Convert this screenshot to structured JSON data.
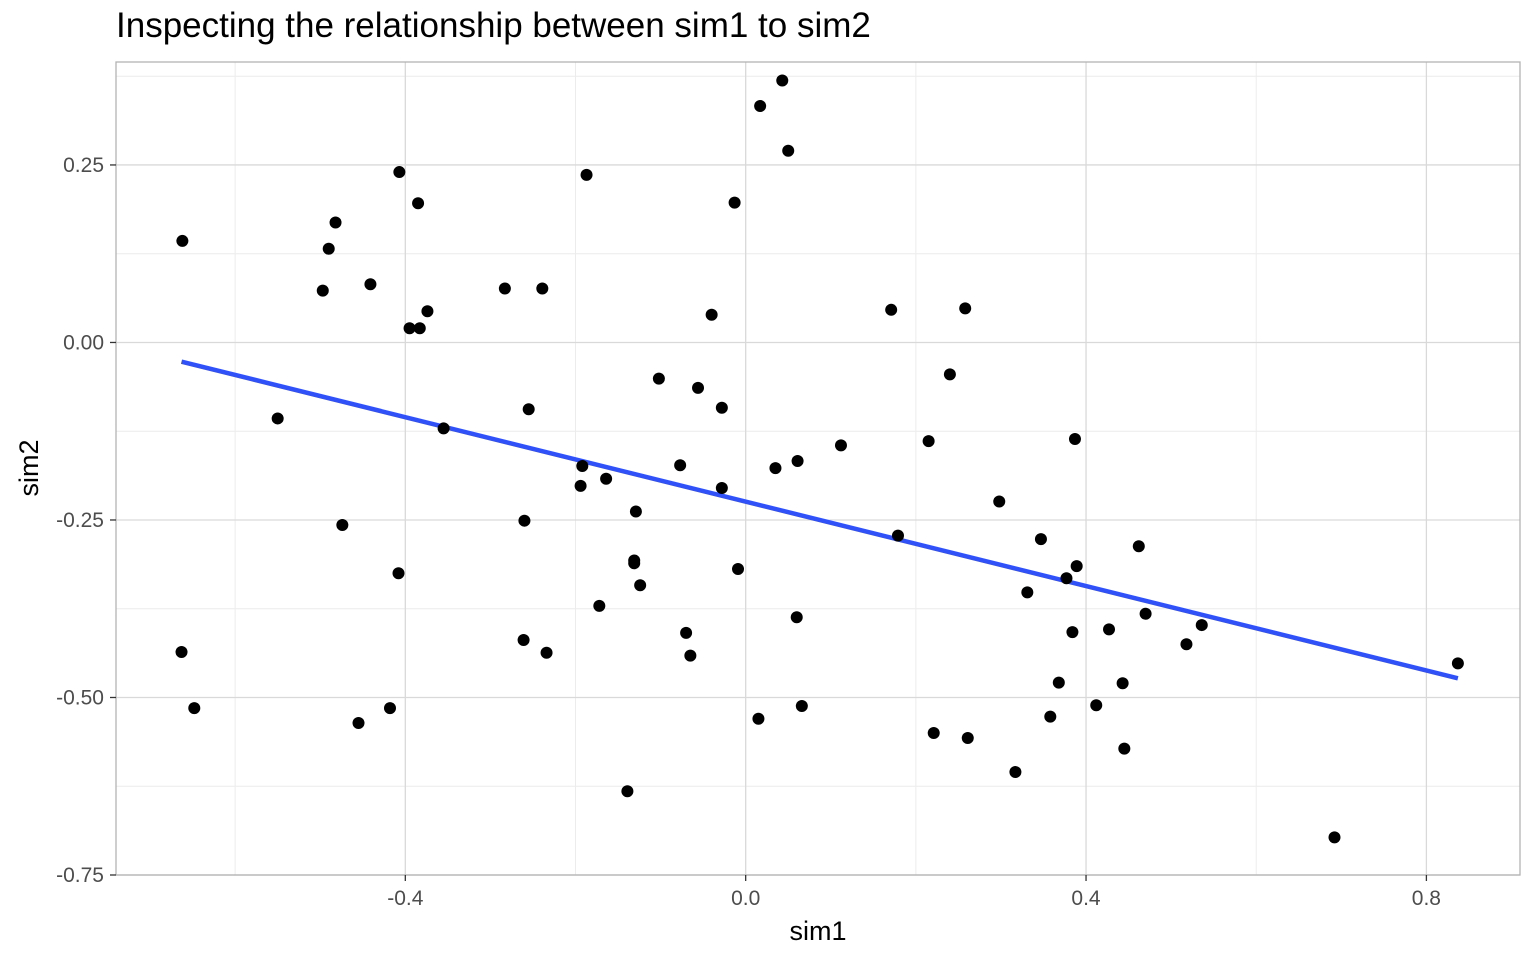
{
  "chart_data": {
    "type": "scatter",
    "title": "Inspecting the relationship between sim1 to sim2",
    "xlabel": "sim1",
    "ylabel": "sim2",
    "xlim": [
      -0.74,
      0.91
    ],
    "ylim": [
      -0.75,
      0.395
    ],
    "x_ticks": [
      -0.4,
      0.0,
      0.4,
      0.8
    ],
    "x_tick_labels": [
      "-0.4",
      "0.0",
      "0.4",
      "0.8"
    ],
    "y_ticks": [
      -0.75,
      -0.5,
      -0.25,
      0.0,
      0.25
    ],
    "y_tick_labels": [
      "-0.75",
      "-0.50",
      "-0.25",
      "0.00",
      "0.25"
    ],
    "grid": true,
    "point_color": "#000000",
    "line_color": "#3050f8",
    "points": [
      {
        "x": -0.662,
        "y": 0.143
      },
      {
        "x": -0.55,
        "y": -0.107
      },
      {
        "x": -0.663,
        "y": -0.436
      },
      {
        "x": -0.648,
        "y": -0.515
      },
      {
        "x": -0.497,
        "y": 0.073
      },
      {
        "x": -0.49,
        "y": 0.132
      },
      {
        "x": -0.482,
        "y": 0.169
      },
      {
        "x": -0.474,
        "y": -0.257
      },
      {
        "x": -0.441,
        "y": 0.082
      },
      {
        "x": -0.455,
        "y": -0.536
      },
      {
        "x": -0.407,
        "y": 0.24
      },
      {
        "x": -0.385,
        "y": 0.196
      },
      {
        "x": -0.395,
        "y": 0.02
      },
      {
        "x": -0.383,
        "y": 0.02
      },
      {
        "x": -0.374,
        "y": 0.044
      },
      {
        "x": -0.355,
        "y": -0.121
      },
      {
        "x": -0.408,
        "y": -0.325
      },
      {
        "x": -0.418,
        "y": -0.515
      },
      {
        "x": -0.283,
        "y": 0.076
      },
      {
        "x": -0.239,
        "y": 0.076
      },
      {
        "x": -0.255,
        "y": -0.094
      },
      {
        "x": -0.26,
        "y": -0.251
      },
      {
        "x": -0.261,
        "y": -0.419
      },
      {
        "x": -0.234,
        "y": -0.437
      },
      {
        "x": -0.187,
        "y": 0.236
      },
      {
        "x": -0.192,
        "y": -0.174
      },
      {
        "x": -0.194,
        "y": -0.202
      },
      {
        "x": -0.164,
        "y": -0.192
      },
      {
        "x": -0.172,
        "y": -0.371
      },
      {
        "x": -0.129,
        "y": -0.238
      },
      {
        "x": -0.131,
        "y": -0.307
      },
      {
        "x": -0.131,
        "y": -0.311
      },
      {
        "x": -0.124,
        "y": -0.342
      },
      {
        "x": -0.139,
        "y": -0.632
      },
      {
        "x": -0.102,
        "y": -0.051
      },
      {
        "x": -0.077,
        "y": -0.173
      },
      {
        "x": -0.07,
        "y": -0.409
      },
      {
        "x": -0.065,
        "y": -0.441
      },
      {
        "x": -0.056,
        "y": -0.064
      },
      {
        "x": -0.04,
        "y": 0.039
      },
      {
        "x": -0.028,
        "y": -0.092
      },
      {
        "x": -0.028,
        "y": -0.205
      },
      {
        "x": -0.013,
        "y": 0.197
      },
      {
        "x": -0.009,
        "y": -0.319
      },
      {
        "x": 0.017,
        "y": 0.333
      },
      {
        "x": 0.043,
        "y": 0.369
      },
      {
        "x": 0.05,
        "y": 0.27
      },
      {
        "x": 0.035,
        "y": -0.177
      },
      {
        "x": 0.061,
        "y": -0.167
      },
      {
        "x": 0.06,
        "y": -0.387
      },
      {
        "x": 0.066,
        "y": -0.512
      },
      {
        "x": 0.015,
        "y": -0.53
      },
      {
        "x": 0.112,
        "y": -0.145
      },
      {
        "x": 0.171,
        "y": 0.046
      },
      {
        "x": 0.179,
        "y": -0.272
      },
      {
        "x": 0.215,
        "y": -0.139
      },
      {
        "x": 0.221,
        "y": -0.55
      },
      {
        "x": 0.24,
        "y": -0.045
      },
      {
        "x": 0.258,
        "y": 0.048
      },
      {
        "x": 0.261,
        "y": -0.557
      },
      {
        "x": 0.298,
        "y": -0.224
      },
      {
        "x": 0.317,
        "y": -0.605
      },
      {
        "x": 0.331,
        "y": -0.352
      },
      {
        "x": 0.347,
        "y": -0.277
      },
      {
        "x": 0.358,
        "y": -0.527
      },
      {
        "x": 0.368,
        "y": -0.479
      },
      {
        "x": 0.377,
        "y": -0.332
      },
      {
        "x": 0.384,
        "y": -0.408
      },
      {
        "x": 0.387,
        "y": -0.136
      },
      {
        "x": 0.389,
        "y": -0.315
      },
      {
        "x": 0.412,
        "y": -0.511
      },
      {
        "x": 0.427,
        "y": -0.404
      },
      {
        "x": 0.443,
        "y": -0.48
      },
      {
        "x": 0.445,
        "y": -0.572
      },
      {
        "x": 0.462,
        "y": -0.287
      },
      {
        "x": 0.47,
        "y": -0.382
      },
      {
        "x": 0.518,
        "y": -0.425
      },
      {
        "x": 0.536,
        "y": -0.398
      },
      {
        "x": 0.692,
        "y": -0.697
      },
      {
        "x": 0.837,
        "y": -0.452
      }
    ],
    "fit_line": {
      "x": [
        -0.663,
        0.837
      ],
      "y": [
        -0.027,
        -0.473
      ]
    }
  }
}
